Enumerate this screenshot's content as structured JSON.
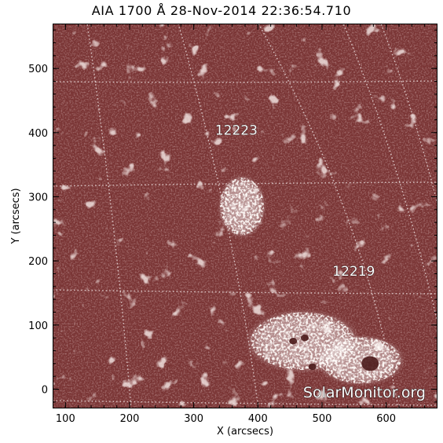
{
  "title": "AIA 1700 Å 28-Nov-2014 22:36:54.710",
  "watermark": "SolarMonitor.org",
  "colors": {
    "background": "#7a3535",
    "bright": "#fff3ef",
    "grid": "#e8d8d8"
  },
  "chart_data": {
    "type": "heatmap",
    "title": "AIA 1700 Å 28-Nov-2014 22:36:54.710",
    "xlabel": "X (arcsecs)",
    "ylabel": "Y (arcsecs)",
    "xlim": [
      80,
      680
    ],
    "ylim": [
      -30,
      570
    ],
    "x_ticks": [
      100,
      200,
      300,
      400,
      500,
      600
    ],
    "y_ticks": [
      0,
      100,
      200,
      300,
      400,
      500
    ],
    "grid": true,
    "regions": [
      {
        "label": "12223",
        "x": 370,
        "y": 397
      },
      {
        "label": "12219",
        "x": 553,
        "y": 177
      }
    ],
    "active_areas": [
      {
        "x": 375,
        "y": 285,
        "rx": 38,
        "ry": 50
      },
      {
        "x": 470,
        "y": 75,
        "rx": 90,
        "ry": 50
      },
      {
        "x": 560,
        "y": 45,
        "rx": 70,
        "ry": 40
      }
    ],
    "sunspots": [
      {
        "x": 575,
        "y": 40
      },
      {
        "x": 473,
        "y": 80
      },
      {
        "x": 455,
        "y": 75
      },
      {
        "x": 485,
        "y": 35
      }
    ]
  }
}
